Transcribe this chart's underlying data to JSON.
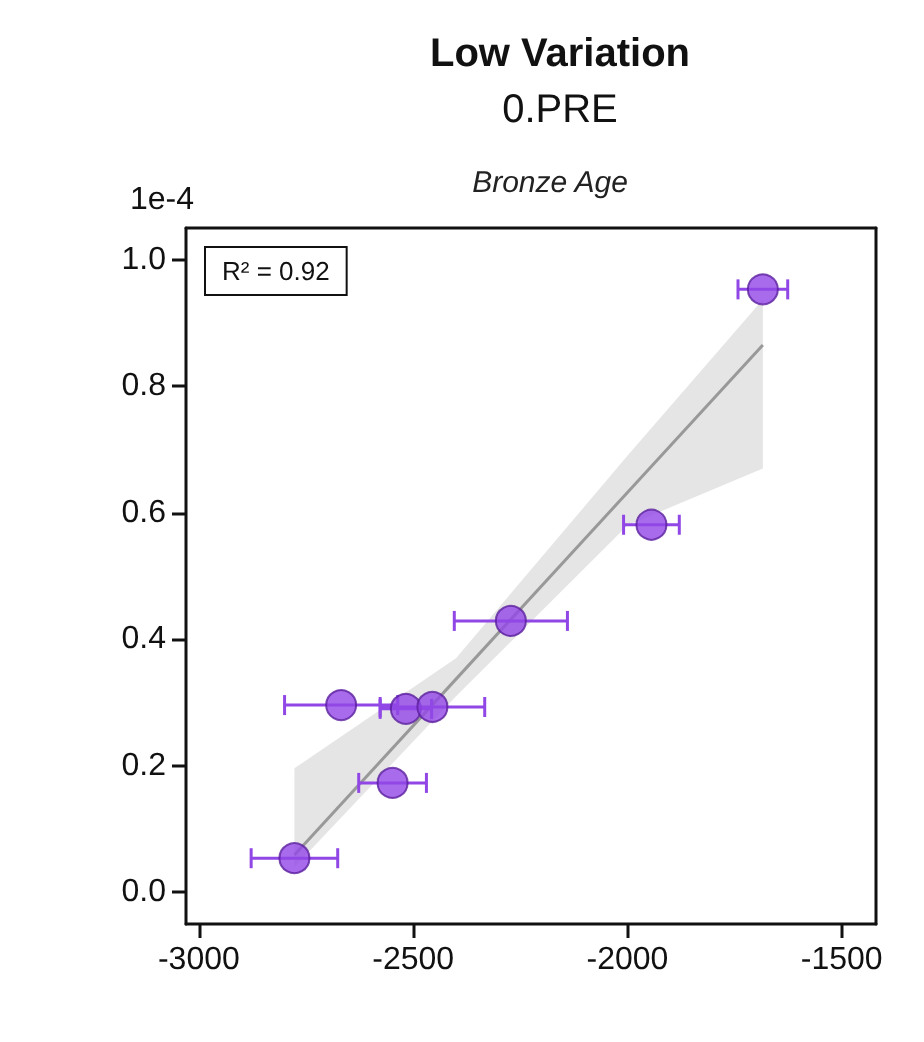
{
  "chart_data": {
    "type": "scatter",
    "title": "Low Variation",
    "subtitle": "0.PRE",
    "ylabel": "1e-4",
    "annotations": [
      "Bronze Age",
      "R² = 0.92"
    ],
    "marker": "circle",
    "xlim": [
      -3030,
      -1420
    ],
    "ylim": [
      -0.05,
      1.05
    ],
    "xticks": [
      -3000,
      -2500,
      -2000,
      -1500
    ],
    "yticks": [
      {
        "value": 0,
        "label": "0.0"
      },
      0.2,
      0.4,
      0.6,
      0.8,
      {
        "value": 1,
        "label": "1.0"
      }
    ],
    "series": [
      {
        "type": "line",
        "marker": "none",
        "color": "#999999",
        "x": [
          -2777,
          -2400,
          -2000,
          -1684
        ],
        "values": [
          0.059,
          0.337,
          0.632,
          0.865
        ],
        "lower": [
          0.04,
          0.31,
          0.58,
          0.67
        ],
        "upper": [
          0.196,
          0.37,
          0.69,
          0.937
        ]
      },
      {
        "color": "#9146e6",
        "x": [
          -1684,
          -1944,
          -2272,
          -2668,
          -2517,
          -2455,
          -2548,
          -2777
        ],
        "values": [
          0.953,
          0.581,
          0.429,
          0.296,
          0.29,
          0.293,
          0.173,
          0.054
        ],
        "xerrors": [
          58,
          65,
          132,
          132,
          60,
          122,
          79,
          101
        ]
      }
    ]
  }
}
